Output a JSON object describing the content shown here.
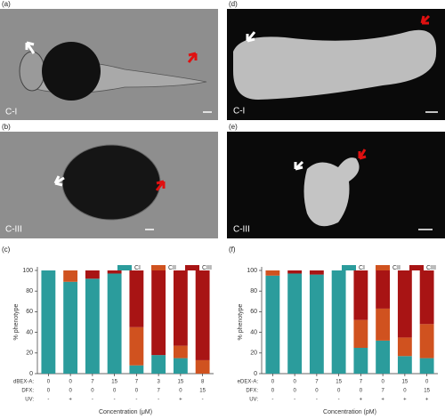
{
  "panels": [
    {
      "label": "(a)",
      "caption": "C-I"
    },
    {
      "label": "(d)",
      "caption": "C-I"
    },
    {
      "label": "(b)",
      "caption": "C-III"
    },
    {
      "label": "(e)",
      "caption": "C-III"
    }
  ],
  "chart_data": [
    {
      "type": "stacked_bar",
      "panel": "(c)",
      "ylabel": "% phenotype",
      "xlabel": "Concentration (μM)",
      "categories": [
        null,
        null,
        null,
        null,
        null,
        null,
        null,
        null
      ],
      "series": [
        {
          "name": "CI",
          "color": "#2b9c9c",
          "values": [
            100,
            89,
            92,
            97,
            8,
            18,
            15,
            0
          ]
        },
        {
          "name": "CII",
          "color": "#d0521f",
          "values": [
            0,
            11,
            0,
            0,
            37,
            0,
            12,
            13
          ]
        },
        {
          "name": "CIII",
          "color": "#a81414",
          "values": [
            0,
            0,
            8,
            3,
            55,
            82,
            73,
            87
          ]
        }
      ],
      "treatment_rows": [
        {
          "label": "dBEX-A:",
          "values": [
            "0",
            "0",
            "7",
            "15",
            "7",
            "3",
            "15",
            "8"
          ]
        },
        {
          "label": "DFX:",
          "values": [
            "0",
            "0",
            "0",
            "0",
            "0",
            "7",
            "0",
            "15"
          ]
        },
        {
          "label": "UV:",
          "values": [
            "-",
            "+",
            "-",
            "-",
            "-",
            "-",
            "+",
            "-"
          ]
        }
      ],
      "ylim": [
        0,
        100
      ],
      "yticks": [
        0,
        20,
        40,
        60,
        80,
        100
      ]
    },
    {
      "type": "stacked_bar",
      "panel": "(f)",
      "ylabel": "% phenotype",
      "xlabel": "Concentration (pM)",
      "categories": [
        null,
        null,
        null,
        null,
        null,
        null,
        null,
        null
      ],
      "series": [
        {
          "name": "CI",
          "color": "#2b9c9c",
          "values": [
            95,
            97,
            96,
            100,
            25,
            32,
            17,
            15
          ]
        },
        {
          "name": "CII",
          "color": "#d0521f",
          "values": [
            5,
            0,
            0,
            0,
            27,
            31,
            18,
            33
          ]
        },
        {
          "name": "CIII",
          "color": "#a81414",
          "values": [
            0,
            3,
            4,
            0,
            48,
            37,
            65,
            52
          ]
        }
      ],
      "treatment_rows": [
        {
          "label": "eDEX-A:",
          "values": [
            "0",
            "0",
            "7",
            "15",
            "7",
            "0",
            "15",
            "0"
          ]
        },
        {
          "label": "DFX:",
          "values": [
            "0",
            "0",
            "0",
            "0",
            "0",
            "7",
            "0",
            "15"
          ]
        },
        {
          "label": "UV:",
          "values": [
            "-",
            "-",
            "-",
            "-",
            "+",
            "+",
            "+",
            "+"
          ]
        }
      ],
      "ylim": [
        0,
        100
      ],
      "yticks": [
        0,
        20,
        40,
        60,
        80,
        100
      ]
    }
  ]
}
